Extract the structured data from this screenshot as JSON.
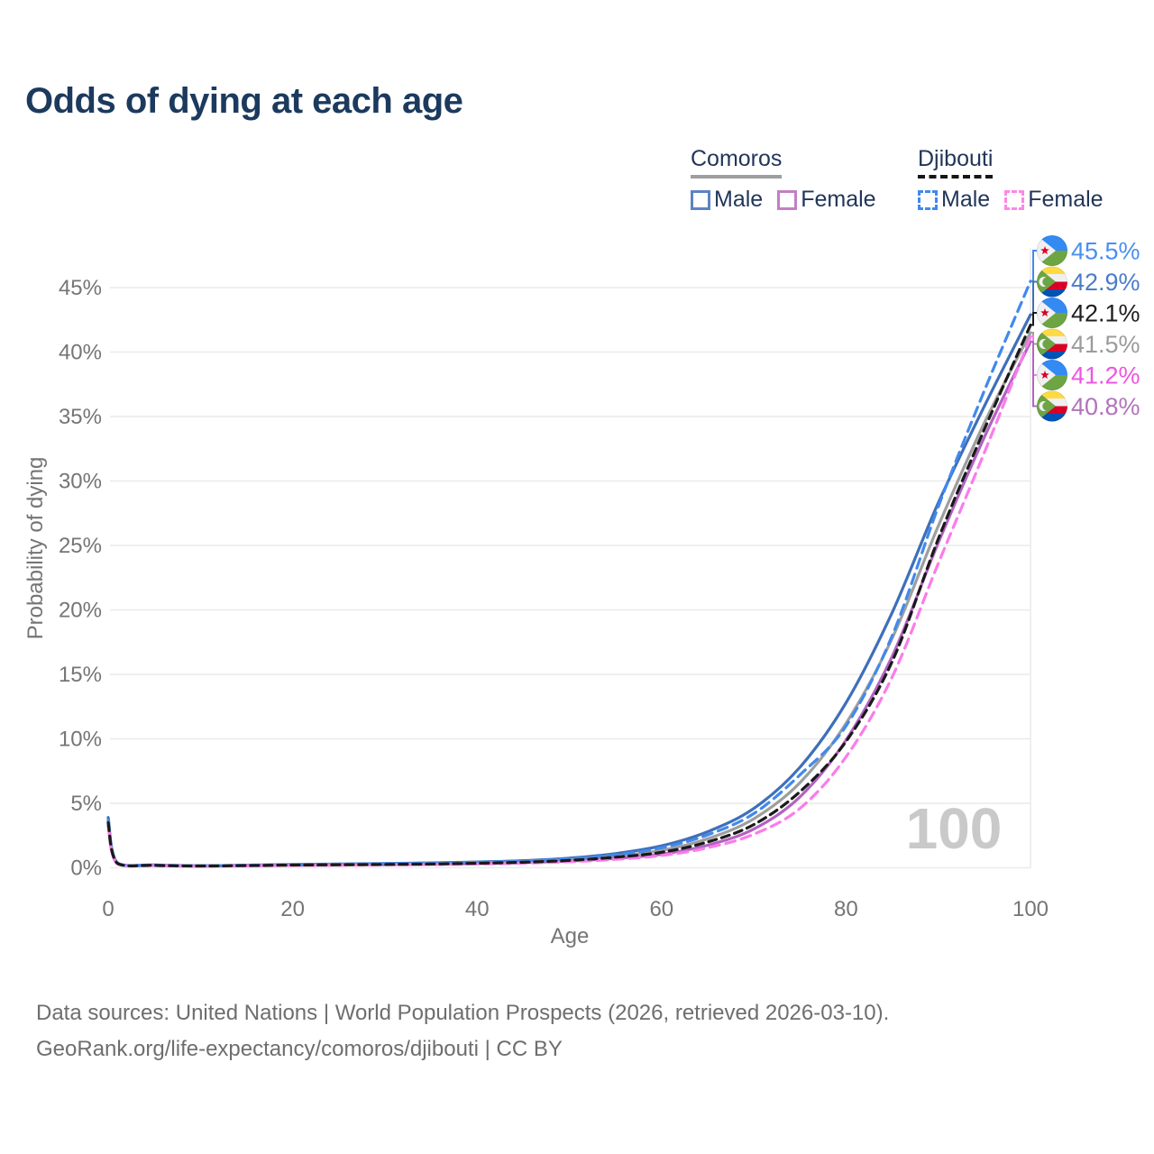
{
  "title": "Odds of dying at each age",
  "legend": {
    "comoros": {
      "label": "Comoros",
      "male": "Male",
      "female": "Female"
    },
    "djibouti": {
      "label": "Djibouti",
      "male": "Male",
      "female": "Female"
    }
  },
  "axes": {
    "x_label": "Age",
    "y_label": "Probability of dying"
  },
  "watermark": "100",
  "footer": {
    "line1": "Data sources: United Nations | World Population Prospects (2026, retrieved 2026-03-10).",
    "line2": "GeoRank.org/life-expectancy/comoros/djibouti | CC BY"
  },
  "colors": {
    "title": "#1c3a5e",
    "axis_text": "#757575",
    "grid": "#eaeaea",
    "comoros_male": "#3e6fba",
    "comoros_total": "#9e9e9e",
    "comoros_female": "#b263c0",
    "djibouti_male": "#4189ec",
    "djibouti_female": "#fb7beb",
    "djibouti_total": "#1a1a1a"
  },
  "chart_data": {
    "type": "line",
    "title": "Odds of dying at each age",
    "xlabel": "Age",
    "ylabel": "Probability of dying",
    "xlim": [
      0,
      100
    ],
    "ylim": [
      0,
      47
    ],
    "x_ticks": [
      0,
      20,
      40,
      60,
      80,
      100
    ],
    "y_ticks_percent": [
      0,
      5,
      10,
      15,
      20,
      25,
      30,
      35,
      40,
      45
    ],
    "grid": "horizontal",
    "legend_position": "top-right",
    "x": [
      0,
      1,
      5,
      10,
      15,
      20,
      25,
      30,
      35,
      40,
      45,
      50,
      55,
      60,
      65,
      70,
      75,
      80,
      85,
      90,
      95,
      100
    ],
    "series": [
      {
        "key": "comoros_male",
        "name": "Comoros male",
        "country": "comoros",
        "sex": "male",
        "line": "solid",
        "color": "#3e6fba",
        "values": [
          3.9,
          0.38,
          0.22,
          0.16,
          0.2,
          0.25,
          0.29,
          0.33,
          0.38,
          0.45,
          0.55,
          0.75,
          1.1,
          1.7,
          2.8,
          4.6,
          7.8,
          12.8,
          19.8,
          28.3,
          35.8,
          42.9
        ]
      },
      {
        "key": "comoros_total",
        "name": "Comoros both sexes",
        "country": "comoros",
        "sex": "both",
        "line": "solid",
        "color": "#9e9e9e",
        "values": [
          3.6,
          0.35,
          0.2,
          0.15,
          0.18,
          0.22,
          0.25,
          0.28,
          0.32,
          0.38,
          0.47,
          0.63,
          0.9,
          1.35,
          2.25,
          3.8,
          6.6,
          11.2,
          17.8,
          26.5,
          34.5,
          41.5
        ]
      },
      {
        "key": "comoros_female",
        "name": "Comoros female",
        "country": "comoros",
        "sex": "female",
        "line": "solid",
        "color": "#b263c0",
        "values": [
          3.3,
          0.32,
          0.18,
          0.13,
          0.16,
          0.19,
          0.21,
          0.24,
          0.27,
          0.32,
          0.4,
          0.52,
          0.72,
          1.05,
          1.75,
          3.0,
          5.5,
          9.9,
          16.4,
          25.2,
          33.4,
          40.8
        ]
      },
      {
        "key": "djibouti_male",
        "name": "Djibouti male",
        "country": "djibouti",
        "sex": "male",
        "line": "dashed",
        "color": "#4189ec",
        "values": [
          3.7,
          0.36,
          0.21,
          0.15,
          0.19,
          0.24,
          0.28,
          0.32,
          0.37,
          0.43,
          0.52,
          0.7,
          1.0,
          1.55,
          2.55,
          4.2,
          7.2,
          11.0,
          18.0,
          28.0,
          37.0,
          45.5
        ]
      },
      {
        "key": "djibouti_female",
        "name": "Djibouti female",
        "country": "djibouti",
        "sex": "female",
        "line": "dashed",
        "color": "#fb7beb",
        "values": [
          3.2,
          0.3,
          0.17,
          0.12,
          0.15,
          0.18,
          0.2,
          0.22,
          0.25,
          0.29,
          0.36,
          0.47,
          0.65,
          0.95,
          1.55,
          2.6,
          4.6,
          8.6,
          14.8,
          23.6,
          32.2,
          41.2
        ]
      },
      {
        "key": "djibouti_total",
        "name": "Djibouti both sexes",
        "country": "djibouti",
        "sex": "both",
        "line": "dashed",
        "color": "#1a1a1a",
        "values": [
          3.5,
          0.34,
          0.19,
          0.14,
          0.17,
          0.21,
          0.23,
          0.26,
          0.29,
          0.35,
          0.43,
          0.57,
          0.82,
          1.2,
          2.0,
          3.35,
          5.9,
          9.8,
          16.0,
          25.5,
          34.0,
          42.1
        ]
      }
    ],
    "end_labels": [
      {
        "label": "45.5%",
        "series": "djibouti_male",
        "country": "djibouti",
        "text_color": "#4a8ff0"
      },
      {
        "label": "42.9%",
        "series": "comoros_male",
        "country": "comoros",
        "text_color": "#4b7cc9"
      },
      {
        "label": "42.1%",
        "series": "djibouti_total",
        "country": "djibouti",
        "text_color": "#1f1f1f"
      },
      {
        "label": "41.5%",
        "series": "comoros_total",
        "country": "comoros",
        "text_color": "#9b9b9b"
      },
      {
        "label": "41.2%",
        "series": "djibouti_female",
        "country": "djibouti",
        "text_color": "#ee55e0"
      },
      {
        "label": "40.8%",
        "series": "comoros_female",
        "country": "comoros",
        "text_color": "#b273bb"
      }
    ],
    "flag_colors": {
      "comoros": {
        "yellow": "#FFDA44",
        "white": "#F0F0F0",
        "red": "#D80027",
        "blue": "#0052B4",
        "green": "#6DA544"
      },
      "djibouti": {
        "blue": "#338AF3",
        "green": "#6DA544",
        "white": "#F0F0F0",
        "star": "#D80027"
      }
    }
  }
}
